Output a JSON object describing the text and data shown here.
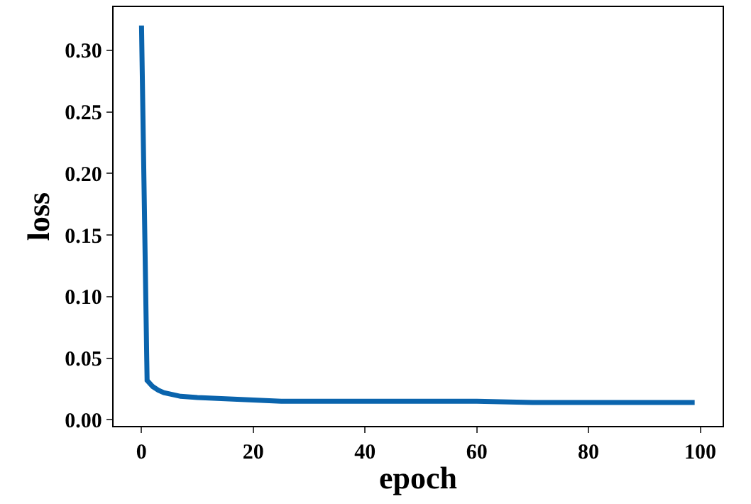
{
  "chart_data": {
    "type": "line",
    "xlabel": "epoch",
    "ylabel": "loss",
    "x": [
      0,
      1,
      2,
      3,
      4,
      5,
      7,
      10,
      15,
      20,
      25,
      30,
      40,
      50,
      60,
      70,
      80,
      90,
      99
    ],
    "series": [
      {
        "color": "#0a64ad",
        "values": [
          0.32,
          0.032,
          0.027,
          0.024,
          0.022,
          0.021,
          0.019,
          0.018,
          0.017,
          0.016,
          0.015,
          0.015,
          0.015,
          0.015,
          0.015,
          0.014,
          0.014,
          0.014,
          0.014
        ]
      }
    ],
    "xlim": [
      -5,
      104
    ],
    "xticks": [
      0,
      20,
      40,
      60,
      80,
      100
    ],
    "ylim": [
      -0.005,
      0.335
    ],
    "yticks": [
      {
        "value": 0,
        "label": "0.00"
      },
      {
        "value": 0.05,
        "label": "0.05"
      },
      {
        "value": 0.1,
        "label": "0.10"
      },
      {
        "value": 0.15,
        "label": "0.15"
      },
      {
        "value": 0.2,
        "label": "0.20"
      },
      {
        "value": 0.25,
        "label": "0.25"
      },
      {
        "value": 0.3,
        "label": "0.30"
      }
    ],
    "marker": "none",
    "line_style": "solid"
  }
}
